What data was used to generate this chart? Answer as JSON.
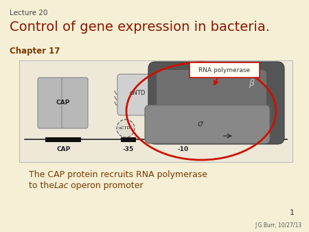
{
  "bg_color": "#f5f0d5",
  "lecture_text": "Lecture 20",
  "title_text": "Control of gene expression in bacteria.",
  "chapter_text": "Chapter 17",
  "caption_line1": "The CAP protein recruits RNA polymerase",
  "caption_italic": "Lac",
  "caption_rest": " operon promoter",
  "label_rna": "RNA polymerase",
  "page_number": "1",
  "author": "J G Burr, 10/27/13",
  "title_color": "#8b1500",
  "chapter_color": "#7a3800",
  "caption_color": "#7a3800",
  "lecture_color": "#444444",
  "label_box_color": "#cc1100",
  "label_text_color": "#333333",
  "img_bg": "#ede8d8",
  "img_border": "#bbbbbb",
  "dna_color": "#222222",
  "cap_color": "#b8b8b8",
  "cap_edge": "#888888",
  "antd_color": "#d0d0d0",
  "antd_edge": "#888888",
  "beta_color": "#555555",
  "beta_dark": "#3a3a3a",
  "sigma_color": "#888888",
  "sigma_edge": "#666666",
  "actd_edge": "#666666",
  "red_oval": "#cc1100",
  "arrow_color": "#333333"
}
